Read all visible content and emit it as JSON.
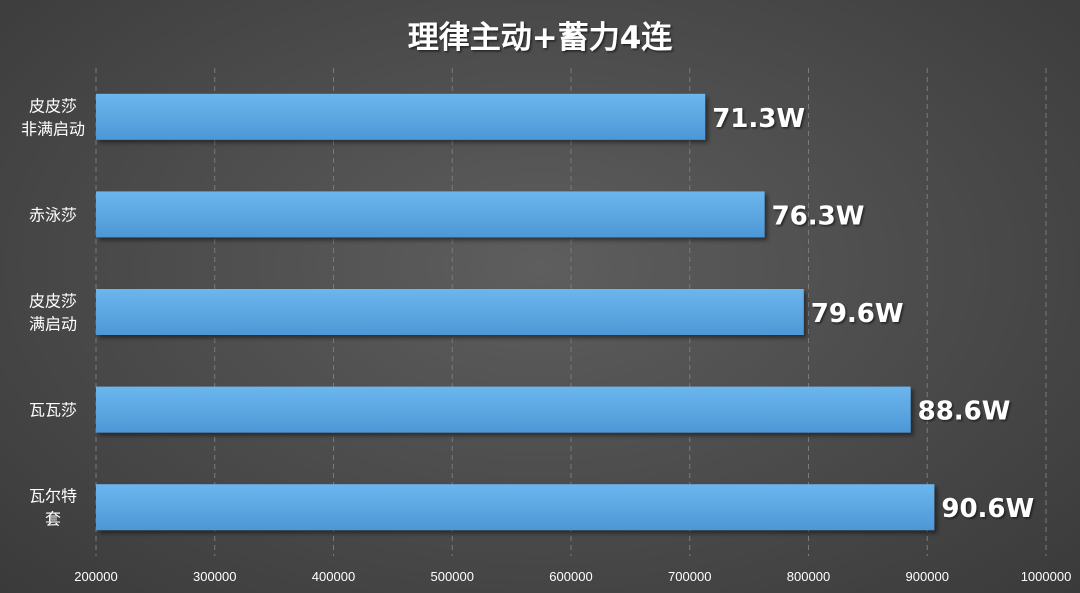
{
  "chart_data": {
    "type": "bar",
    "orientation": "horizontal",
    "title": "理律主动+蓄力4连",
    "xlabel": "",
    "ylabel": "",
    "categories": [
      [
        "皮皮莎",
        "非满启动"
      ],
      [
        "赤泳莎"
      ],
      [
        "皮皮莎",
        "满启动"
      ],
      [
        "瓦瓦莎"
      ],
      [
        "瓦尔特",
        "套"
      ]
    ],
    "values": [
      713000,
      763000,
      796000,
      886000,
      906000
    ],
    "value_labels": [
      "71.3W",
      "76.3W",
      "79.6W",
      "88.6W",
      "90.6W"
    ],
    "xlim": [
      200000,
      1000000
    ],
    "x_ticks": [
      "200000",
      "300000",
      "400000",
      "500000",
      "600000",
      "700000",
      "800000",
      "900000",
      "1000000"
    ],
    "grid": "vertical-dashed",
    "legend": "none",
    "bar_color": "#5aa7e3"
  }
}
